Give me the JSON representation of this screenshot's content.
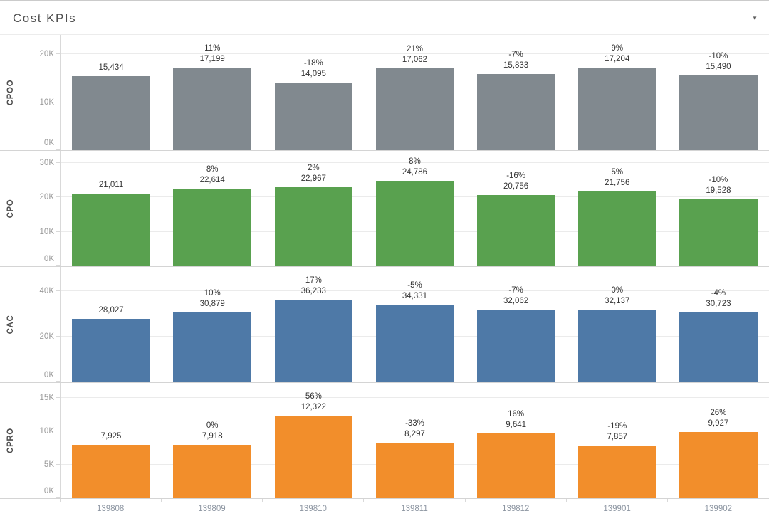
{
  "header": {
    "title": "Cost KPIs"
  },
  "icons": {
    "caret_down": "▼"
  },
  "colors": {
    "cpoo_gray": "#81898f",
    "cpo_green": "#59a14f",
    "cac_blue": "#4e79a7",
    "cpro_orange": "#f28e2b",
    "grid_line": "#ebebeb",
    "separator_line": "#d4d4d4",
    "axis_line": "#d9d9d9",
    "ytick_text": "#9a9a9a",
    "xtick_text": "#8d96a2",
    "row_label_text": "#4e4e4e",
    "value_text": "#343434"
  },
  "chart_data": {
    "type": "bar",
    "title": "Cost KPIs",
    "xlabel": "",
    "grid": true,
    "legend": "none",
    "categories": [
      "139808",
      "139809",
      "139810",
      "139811",
      "139812",
      "139901",
      "139902"
    ],
    "series": [
      {
        "name": "CPOO",
        "color": "#81898f",
        "values": [
          15434,
          17199,
          14095,
          17062,
          15833,
          17204,
          15490
        ],
        "value_labels": [
          "15,434",
          "17,199",
          "14,095",
          "17,062",
          "15,833",
          "17,204",
          "15,490"
        ],
        "pct_change_labels": [
          "",
          "11%",
          "-18%",
          "21%",
          "-7%",
          "9%",
          "-10%"
        ],
        "yticks": [
          {
            "label": "0K",
            "value": 0
          },
          {
            "label": "10K",
            "value": 10000
          },
          {
            "label": "20K",
            "value": 20000
          }
        ],
        "axis_top": 24000
      },
      {
        "name": "CPO",
        "color": "#59a14f",
        "values": [
          21011,
          22614,
          22967,
          24786,
          20756,
          21756,
          19528
        ],
        "value_labels": [
          "21,011",
          "22,614",
          "22,967",
          "24,786",
          "20,756",
          "21,756",
          "19,528"
        ],
        "pct_change_labels": [
          "",
          "8%",
          "2%",
          "8%",
          "-16%",
          "5%",
          "-10%"
        ],
        "yticks": [
          {
            "label": "0K",
            "value": 0
          },
          {
            "label": "10K",
            "value": 10000
          },
          {
            "label": "20K",
            "value": 20000
          },
          {
            "label": "30K",
            "value": 30000
          }
        ],
        "axis_top": 33500
      },
      {
        "name": "CAC",
        "color": "#4e79a7",
        "values": [
          28027,
          30879,
          36233,
          34331,
          32062,
          32137,
          30723
        ],
        "value_labels": [
          "28,027",
          "30,879",
          "36,233",
          "34,331",
          "32,062",
          "32,137",
          "30,723"
        ],
        "pct_change_labels": [
          "",
          "10%",
          "17%",
          "-5%",
          "-7%",
          "0%",
          "-4%"
        ],
        "yticks": [
          {
            "label": "0K",
            "value": 0
          },
          {
            "label": "20K",
            "value": 20000
          },
          {
            "label": "40K",
            "value": 40000
          }
        ],
        "axis_top": 50800
      },
      {
        "name": "CPRO",
        "color": "#f28e2b",
        "values": [
          7925,
          7918,
          12322,
          8297,
          9641,
          7857,
          9927
        ],
        "value_labels": [
          "7,925",
          "7,918",
          "12,322",
          "8,297",
          "9,641",
          "7,857",
          "9,927"
        ],
        "pct_change_labels": [
          "",
          "0%",
          "56%",
          "-33%",
          "16%",
          "-19%",
          "26%"
        ],
        "yticks": [
          {
            "label": "0K",
            "value": 0
          },
          {
            "label": "5K",
            "value": 5000
          },
          {
            "label": "10K",
            "value": 10000
          },
          {
            "label": "15K",
            "value": 15000
          }
        ],
        "axis_top": 17200
      }
    ]
  }
}
